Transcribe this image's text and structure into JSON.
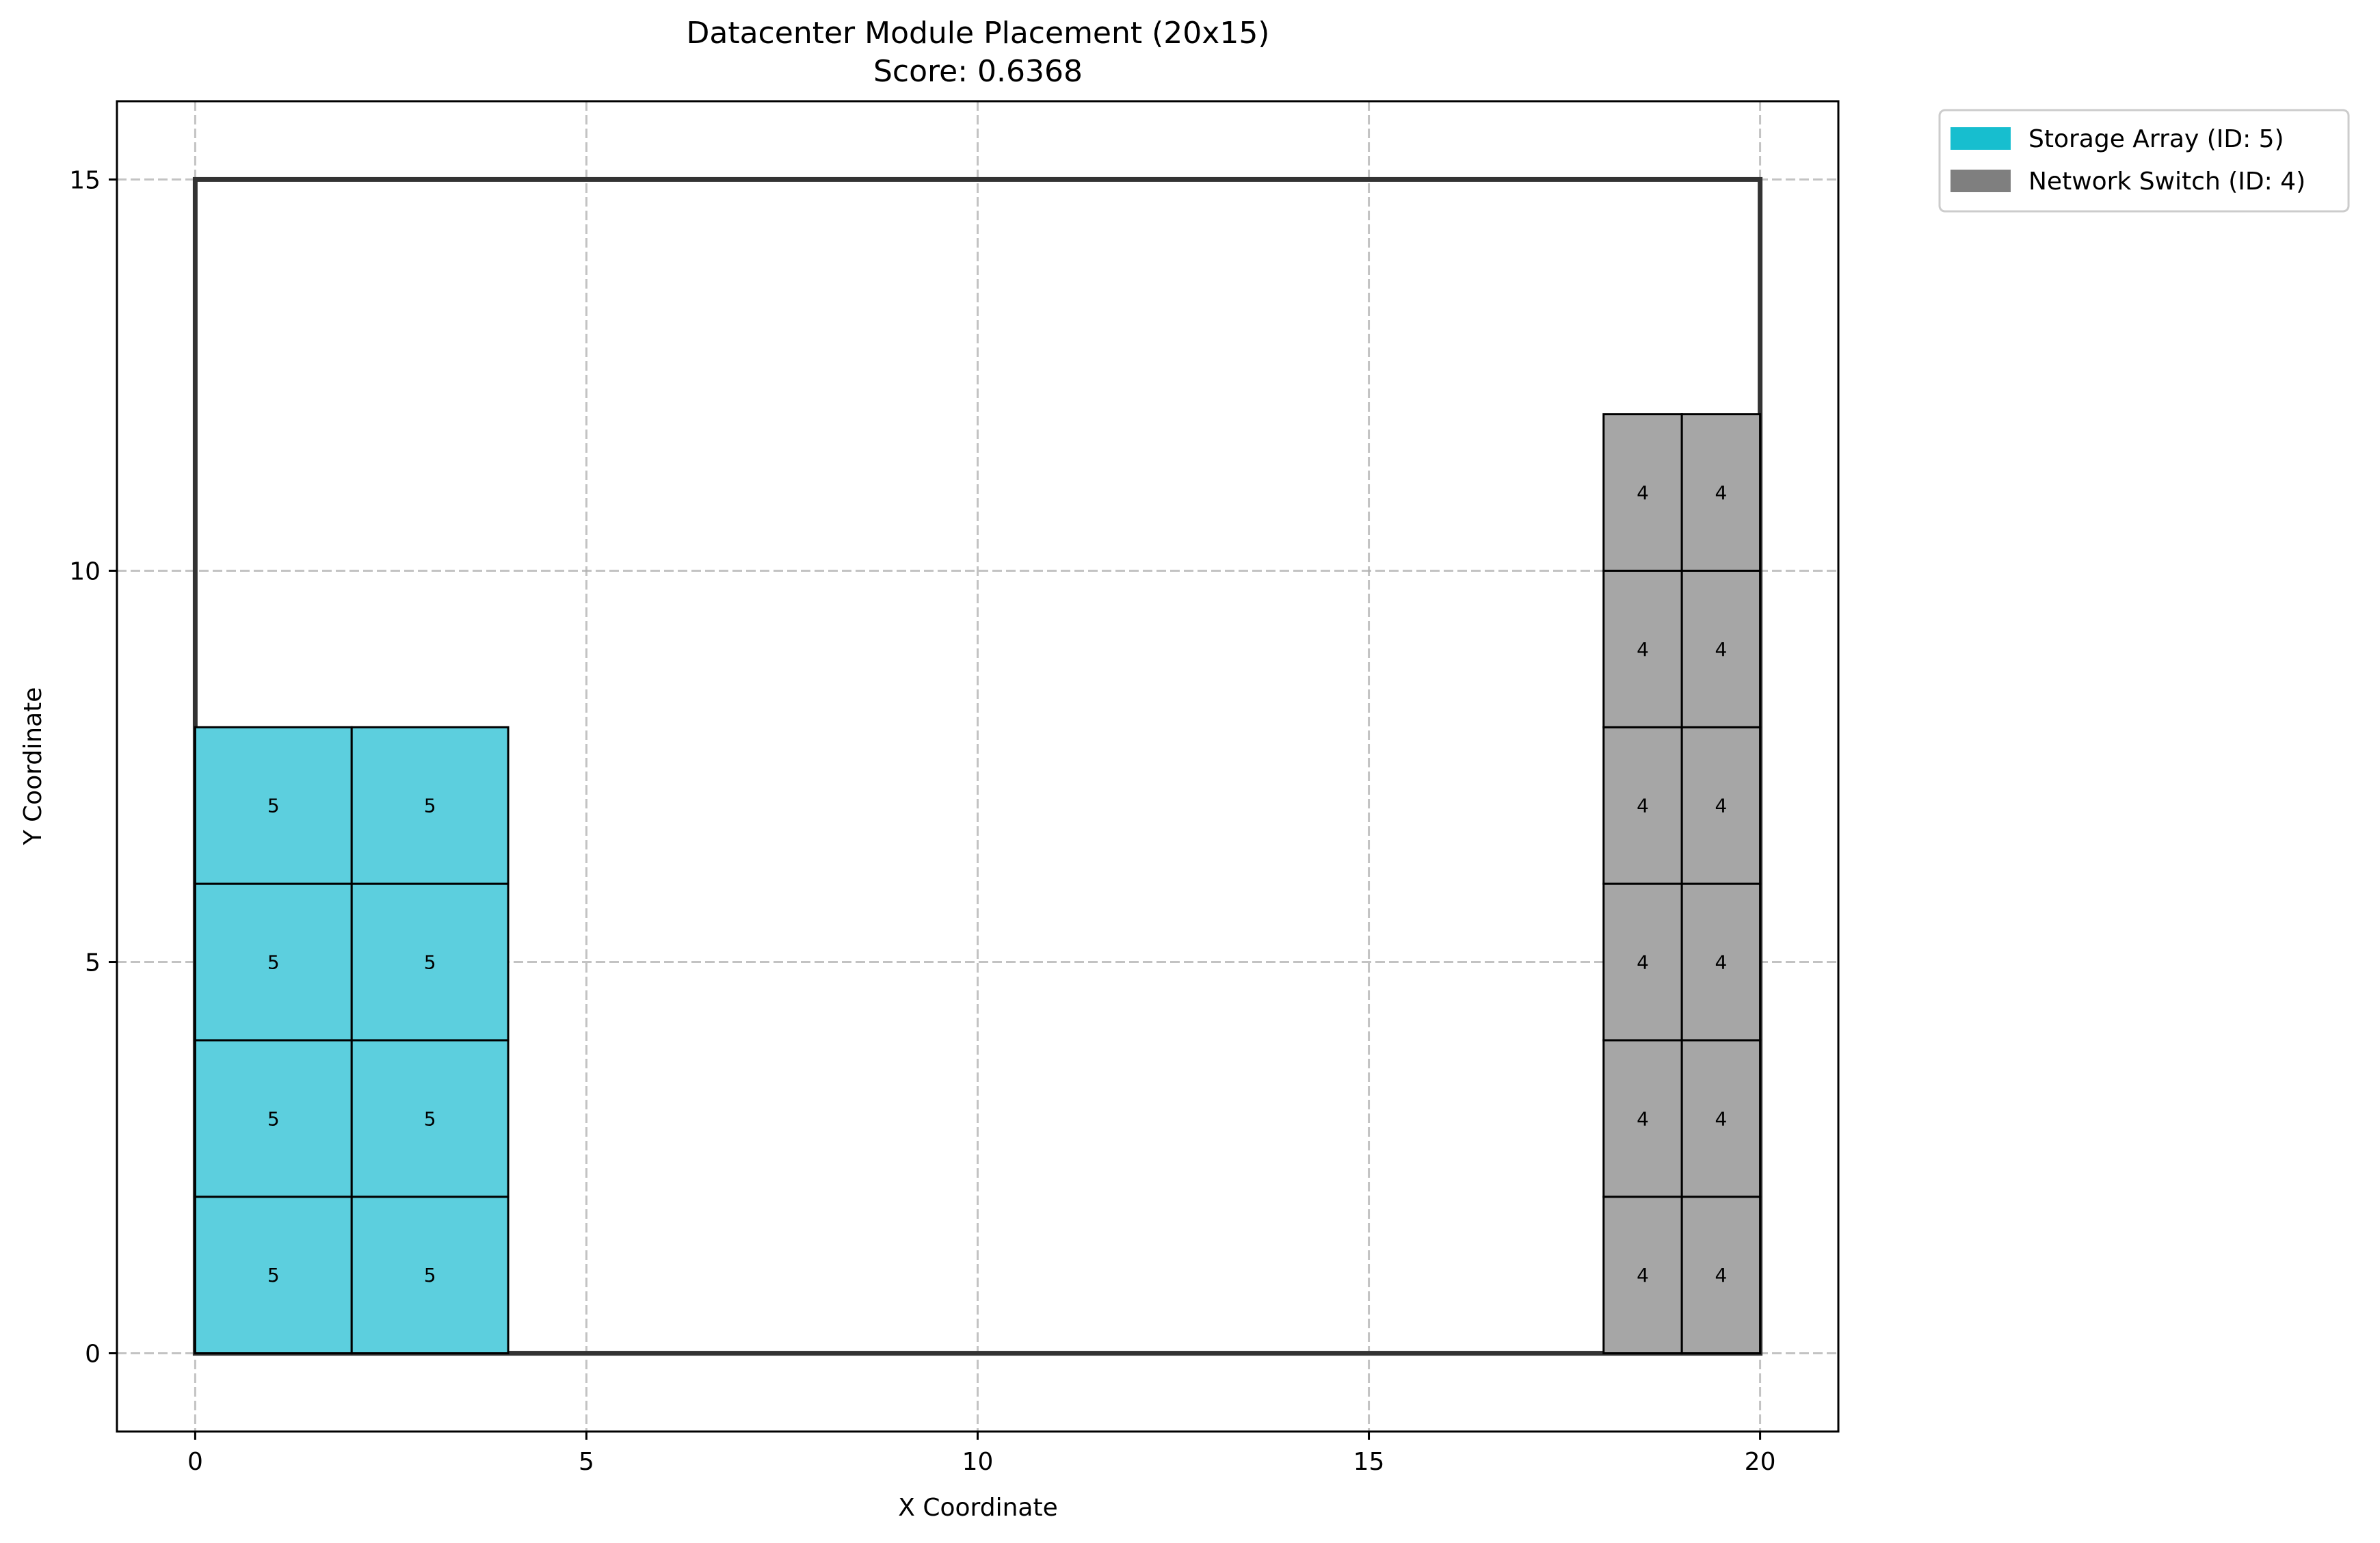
{
  "chart_data": {
    "type": "heatmap",
    "title": "Datacenter Module Placement (20x15)",
    "subtitle": "Score: 0.6368",
    "xlabel": "X Coordinate",
    "ylabel": "Y Coordinate",
    "xlim": [
      -1,
      21
    ],
    "ylim": [
      -1,
      16
    ],
    "xticks": [
      0,
      5,
      10,
      15,
      20
    ],
    "yticks": [
      0,
      5,
      10,
      15
    ],
    "grid": true,
    "grid_style": "dashed",
    "boundary": {
      "x": [
        0,
        20
      ],
      "y": [
        0,
        15
      ],
      "label": "20x15"
    },
    "legend": {
      "placement": "outside-top-right",
      "entries": [
        {
          "label": "Storage Array (ID: 5)",
          "color": "#17becf"
        },
        {
          "label": "Network Switch (ID: 4)",
          "color": "#7f7f7f"
        }
      ]
    },
    "modules": [
      {
        "id": 5,
        "name": "Storage Array",
        "fill": "#5ccfde",
        "cells": [
          {
            "x": 0,
            "y": 0,
            "w": 2,
            "h": 2
          },
          {
            "x": 2,
            "y": 0,
            "w": 2,
            "h": 2
          },
          {
            "x": 0,
            "y": 2,
            "w": 2,
            "h": 2
          },
          {
            "x": 2,
            "y": 2,
            "w": 2,
            "h": 2
          },
          {
            "x": 0,
            "y": 4,
            "w": 2,
            "h": 2
          },
          {
            "x": 2,
            "y": 4,
            "w": 2,
            "h": 2
          },
          {
            "x": 0,
            "y": 6,
            "w": 2,
            "h": 2
          },
          {
            "x": 2,
            "y": 6,
            "w": 2,
            "h": 2
          }
        ]
      },
      {
        "id": 4,
        "name": "Network Switch",
        "fill": "#a6a6a6",
        "cells": [
          {
            "x": 18,
            "y": 0,
            "w": 1,
            "h": 2
          },
          {
            "x": 19,
            "y": 0,
            "w": 1,
            "h": 2
          },
          {
            "x": 18,
            "y": 2,
            "w": 1,
            "h": 2
          },
          {
            "x": 19,
            "y": 2,
            "w": 1,
            "h": 2
          },
          {
            "x": 18,
            "y": 4,
            "w": 1,
            "h": 2
          },
          {
            "x": 19,
            "y": 4,
            "w": 1,
            "h": 2
          },
          {
            "x": 18,
            "y": 6,
            "w": 1,
            "h": 2
          },
          {
            "x": 19,
            "y": 6,
            "w": 1,
            "h": 2
          },
          {
            "x": 18,
            "y": 8,
            "w": 1,
            "h": 2
          },
          {
            "x": 19,
            "y": 8,
            "w": 1,
            "h": 2
          },
          {
            "x": 18,
            "y": 10,
            "w": 1,
            "h": 2
          },
          {
            "x": 19,
            "y": 10,
            "w": 1,
            "h": 2
          }
        ]
      }
    ]
  }
}
